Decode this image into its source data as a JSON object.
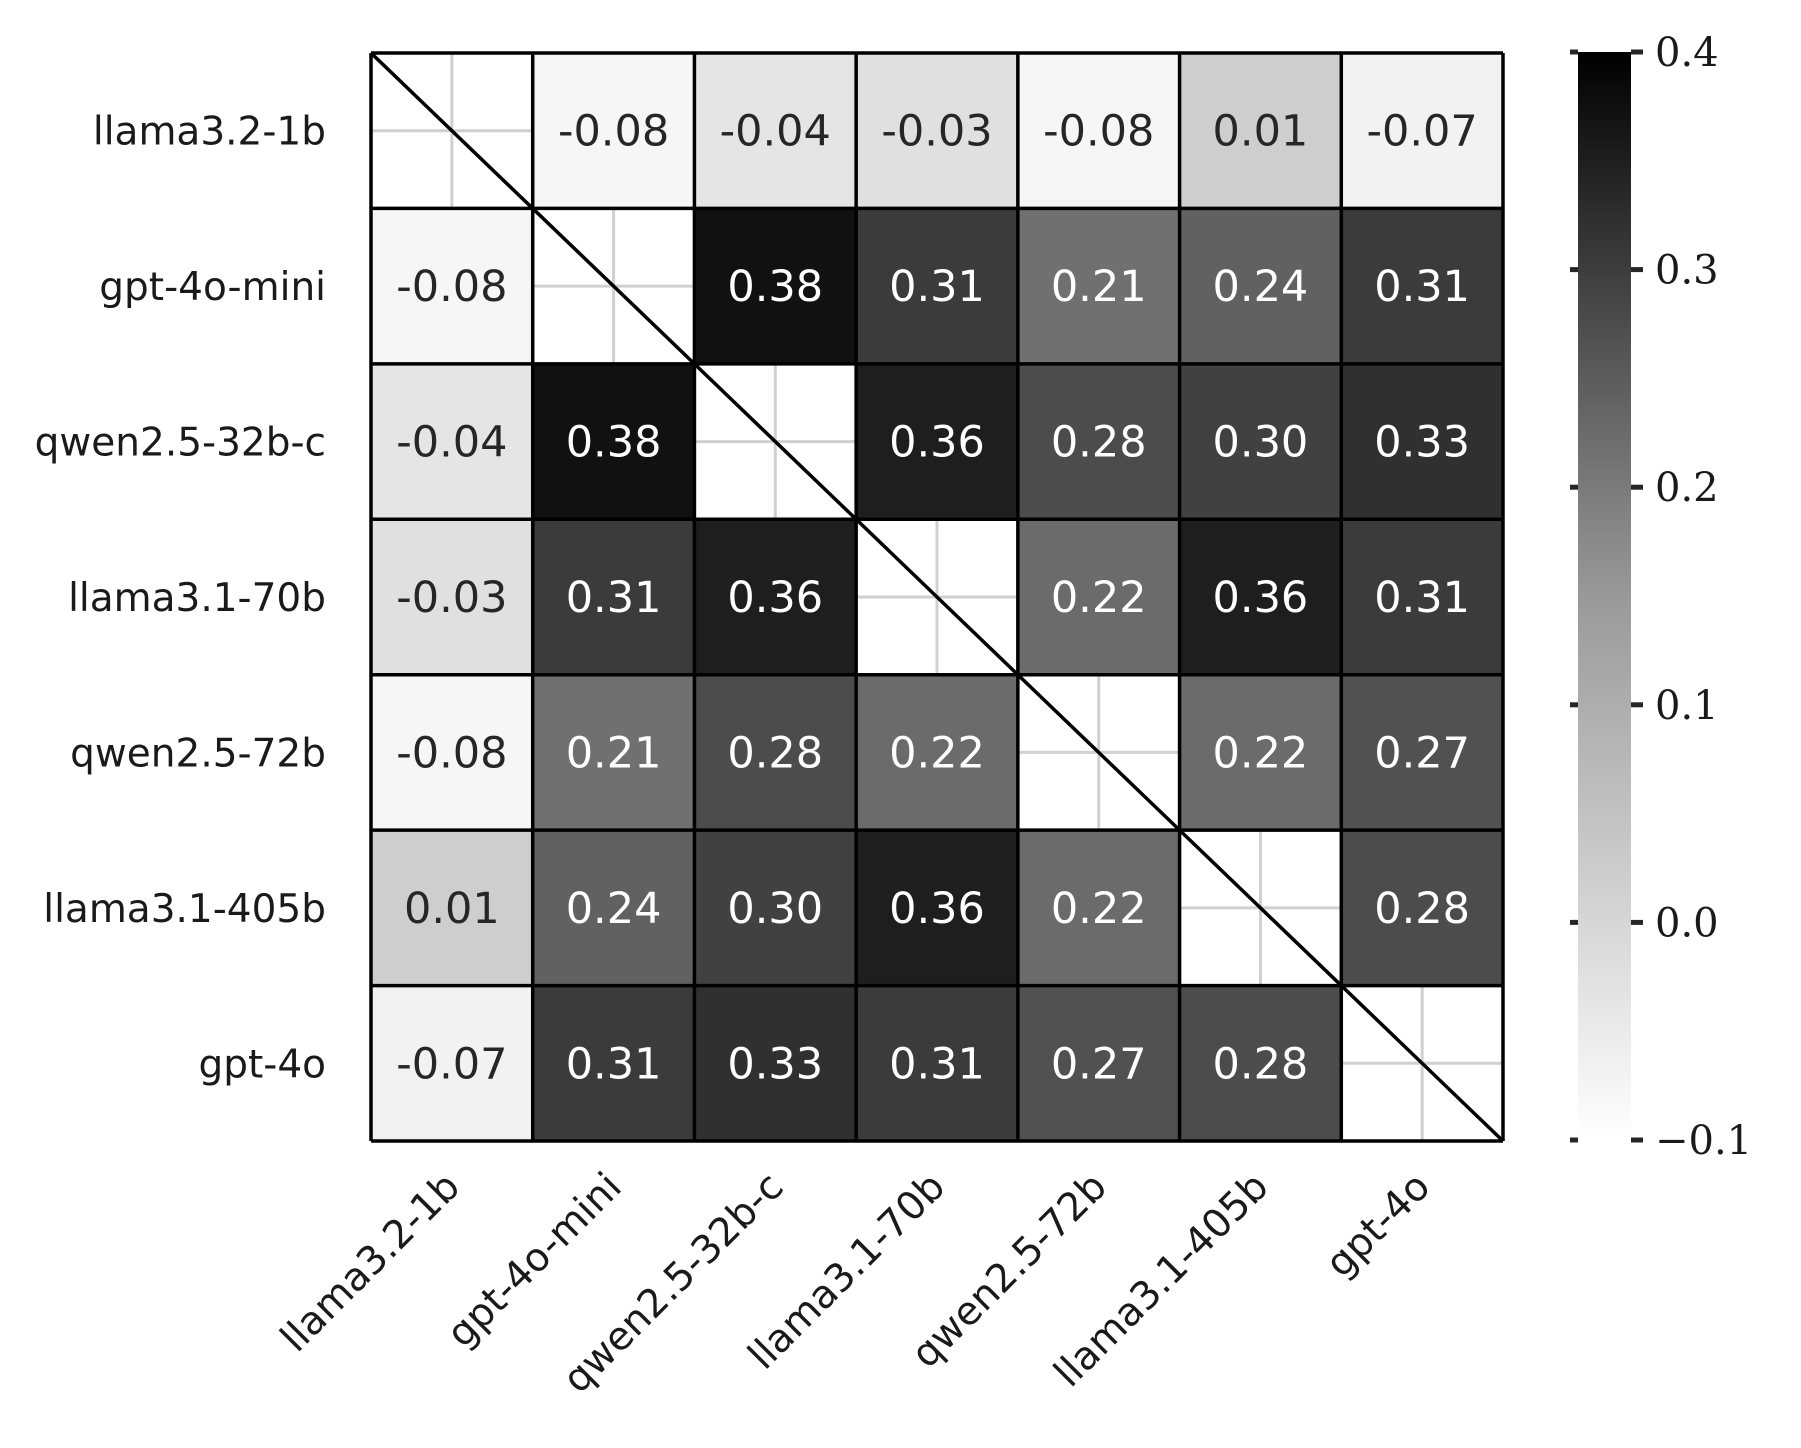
{
  "chart_data": {
    "type": "heatmap",
    "title": "",
    "labels": [
      "llama3.2-1b",
      "gpt-4o-mini",
      "qwen2.5-32b-c",
      "llama3.1-70b",
      "qwen2.5-72b",
      "llama3.1-405b",
      "gpt-4o"
    ],
    "matrix": [
      [
        null,
        -0.08,
        -0.04,
        -0.03,
        -0.08,
        0.01,
        -0.07
      ],
      [
        -0.08,
        null,
        0.38,
        0.31,
        0.21,
        0.24,
        0.31
      ],
      [
        -0.04,
        0.38,
        null,
        0.36,
        0.28,
        0.3,
        0.33
      ],
      [
        -0.03,
        0.31,
        0.36,
        null,
        0.22,
        0.36,
        0.31
      ],
      [
        -0.08,
        0.21,
        0.28,
        0.22,
        null,
        0.22,
        0.27
      ],
      [
        0.01,
        0.24,
        0.3,
        0.36,
        0.22,
        null,
        0.28
      ],
      [
        -0.07,
        0.31,
        0.33,
        0.31,
        0.27,
        0.28,
        null
      ]
    ],
    "value_labels": [
      [
        "",
        "-0.08",
        "-0.04",
        "-0.03",
        "-0.08",
        "0.01",
        "-0.07"
      ],
      [
        "-0.08",
        "",
        "0.38",
        "0.31",
        "0.21",
        "0.24",
        "0.31"
      ],
      [
        "-0.04",
        "0.38",
        "",
        "0.36",
        "0.28",
        "0.30",
        "0.33"
      ],
      [
        "-0.03",
        "0.31",
        "0.36",
        "",
        "0.22",
        "0.36",
        "0.31"
      ],
      [
        "-0.08",
        "0.21",
        "0.28",
        "0.22",
        "",
        "0.22",
        "0.27"
      ],
      [
        "0.01",
        "0.24",
        "0.30",
        "0.36",
        "0.22",
        "",
        "0.28"
      ],
      [
        "-0.07",
        "0.31",
        "0.33",
        "0.31",
        "0.27",
        "0.28",
        ""
      ]
    ],
    "diagonal": "blank with diagonal line",
    "colorbar": {
      "vmin": -0.1,
      "vmax": 0.4,
      "ticks": [
        0.4,
        0.3,
        0.2,
        0.1,
        0.0,
        -0.1
      ],
      "tick_labels": [
        "0.4",
        "0.3",
        "0.2",
        "0.1",
        "0.0",
        "−0.1"
      ],
      "colormap": "Greys"
    },
    "colors": {
      "low": "#ffffff",
      "high": "#000000",
      "grid": "#d0d0d0",
      "border": "#000000"
    },
    "xlabel": "",
    "ylabel": ""
  }
}
